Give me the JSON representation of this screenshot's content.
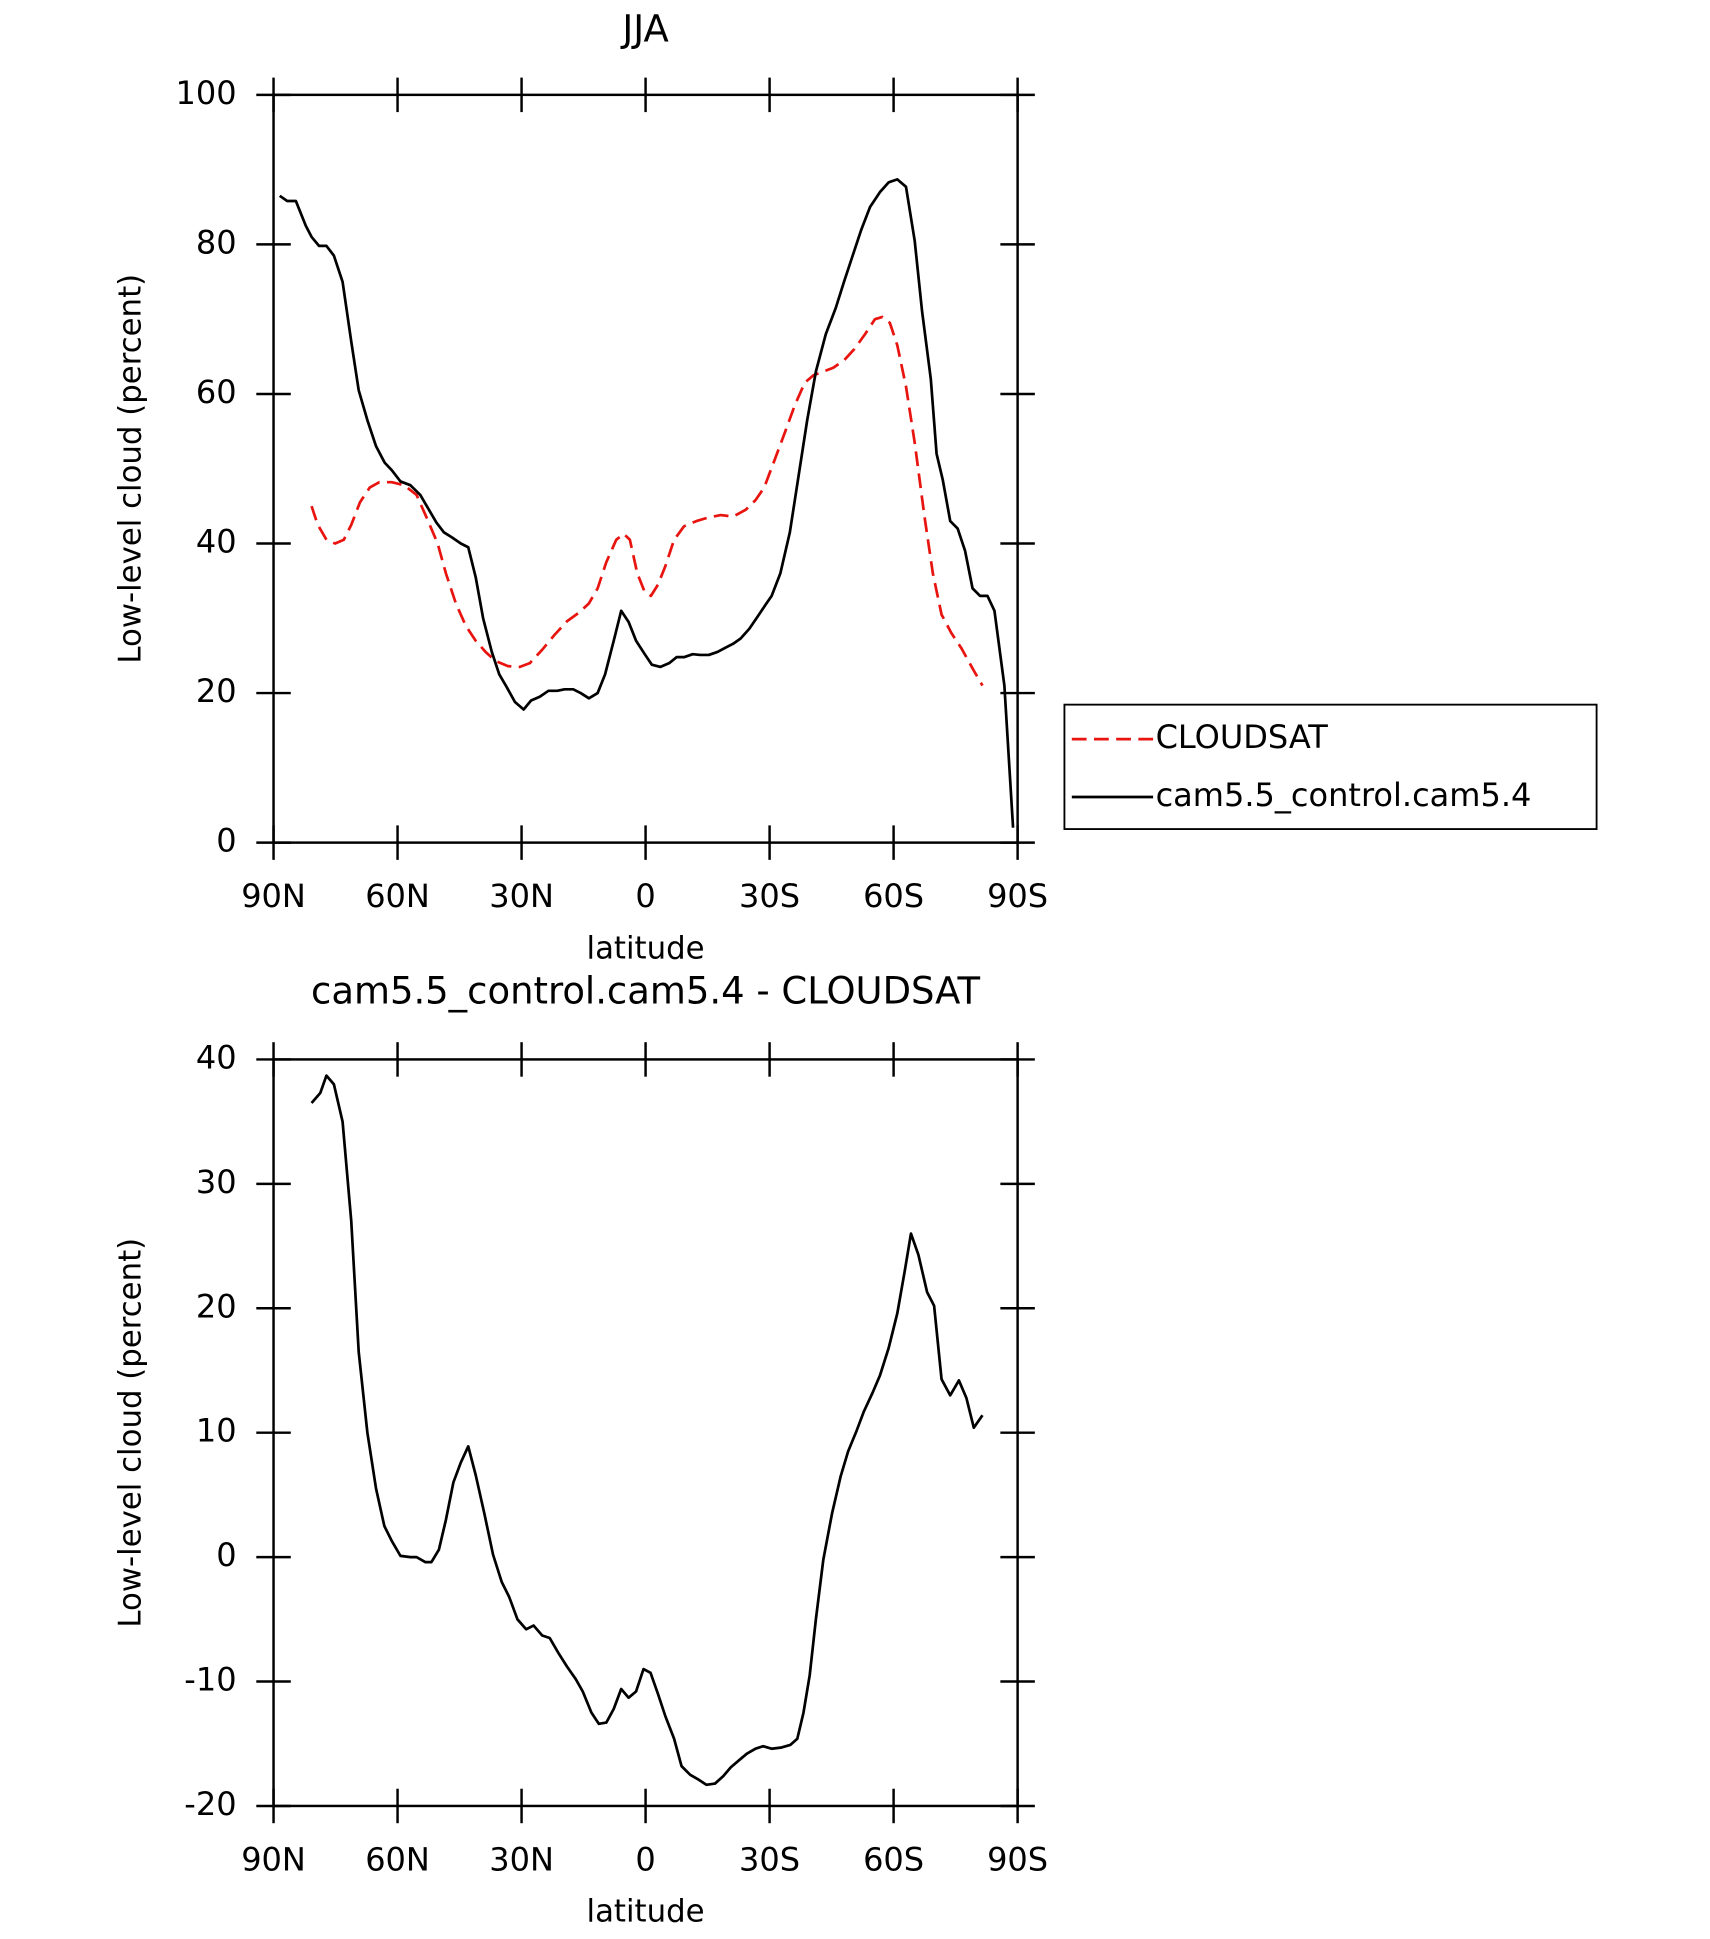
{
  "chart_data": [
    {
      "type": "line",
      "title": "JJA",
      "xlabel": "latitude",
      "ylabel": "Low-level cloud (percent)",
      "xlim": [
        90,
        -90
      ],
      "xticks": [
        {
          "value": 90,
          "label": "90N"
        },
        {
          "value": 60,
          "label": "60N"
        },
        {
          "value": 30,
          "label": "30N"
        },
        0,
        {
          "value": -30,
          "label": "30S"
        },
        {
          "value": -60,
          "label": "60S"
        },
        {
          "value": -90,
          "label": "90S"
        }
      ],
      "ylim": [
        0,
        100
      ],
      "yticks": [
        0,
        20,
        40,
        60,
        80,
        100
      ],
      "legend": "right",
      "series": [
        {
          "name": "CLOUDSAT",
          "color": "#e8140f",
          "dashed": true,
          "x": [
            80.8,
            79.3,
            77.2,
            75.1,
            73.0,
            71.2,
            69.1,
            66.7,
            64.4,
            61.4,
            58.4,
            55.4,
            53.0,
            50.3,
            48.3,
            45.9,
            43.5,
            41.1,
            38.7,
            36.3,
            33.3,
            30.4,
            28.0,
            25.0,
            22.0,
            19.0,
            16.0,
            13.7,
            11.6,
            9.5,
            7.1,
            5.3,
            3.8,
            2.0,
            0.2,
            -1.3,
            -3.0,
            -4.8,
            -6.9,
            -9.3,
            -12.3,
            -15.3,
            -18.2,
            -21.2,
            -24.2,
            -26.6,
            -28.7,
            -31.1,
            -33.8,
            -36.1,
            -38.5,
            -40.6,
            -43.0,
            -45.4,
            -48.0,
            -50.5,
            -53.1,
            -55.5,
            -57.3,
            -59.1,
            -60.9,
            -63.0,
            -65.1,
            -67.5,
            -69.5,
            -71.6,
            -74.0,
            -76.4,
            -79.4,
            -81.5
          ],
          "values": [
            45,
            42.5,
            40.5,
            40,
            40.5,
            42.5,
            45.5,
            47.5,
            48.2,
            48.2,
            47.8,
            46.5,
            43.5,
            40,
            36,
            32,
            29,
            27,
            25.5,
            24.3,
            23.6,
            23.5,
            24,
            25.8,
            27.8,
            29.6,
            30.8,
            32,
            34,
            37.5,
            40.5,
            41.3,
            40.5,
            36,
            33.5,
            33,
            34.5,
            37,
            40.5,
            42.3,
            43,
            43.5,
            43.8,
            43.6,
            44.5,
            45.8,
            47.5,
            51,
            55,
            58.5,
            61.5,
            62.5,
            63,
            63.5,
            64.5,
            66,
            68,
            70,
            70.3,
            69.5,
            66.5,
            61,
            53.5,
            43.5,
            36,
            30.5,
            28,
            26,
            23,
            21
          ]
        },
        {
          "name": "cam5.5_control.cam5.4",
          "color": "#000000",
          "dashed": false,
          "x": [
            88.5,
            86.7,
            84.6,
            82.2,
            80.8,
            79.0,
            77.2,
            75.4,
            73.3,
            71.2,
            69.4,
            67.3,
            65.2,
            63.1,
            61.4,
            59.3,
            56.9,
            54.5,
            52.4,
            50.6,
            48.8,
            46.8,
            44.7,
            42.9,
            41.1,
            39.3,
            37.2,
            35.4,
            33.6,
            31.6,
            29.5,
            27.7,
            25.6,
            23.5,
            21.4,
            19.6,
            17.5,
            15.7,
            13.7,
            11.6,
            9.8,
            7.7,
            5.9,
            4.1,
            2.3,
            0.2,
            -1.5,
            -3.6,
            -5.7,
            -7.5,
            -9.3,
            -11.4,
            -13.2,
            -15.3,
            -17.4,
            -19.1,
            -21.2,
            -23.0,
            -25.1,
            -27.2,
            -29.0,
            -30.5,
            -32.6,
            -34.9,
            -37.0,
            -39.1,
            -41.2,
            -43.6,
            -46.0,
            -48.0,
            -50.1,
            -52.2,
            -54.3,
            -56.7,
            -58.8,
            -60.9,
            -63.0,
            -65.1,
            -66.9,
            -69.0,
            -70.4,
            -71.9,
            -73.7,
            -75.5,
            -77.3,
            -79.1,
            -80.9,
            -82.7,
            -84.4,
            -86.8,
            -88.9
          ],
          "values": [
            86.5,
            85.8,
            85.8,
            82.5,
            81,
            79.8,
            79.8,
            78.5,
            75,
            67,
            60.5,
            56.5,
            53,
            50.8,
            49.8,
            48.3,
            47.8,
            46.5,
            44.5,
            42.8,
            41.5,
            40.8,
            40,
            39.5,
            35.5,
            30,
            25.5,
            22.5,
            20.8,
            18.8,
            17.8,
            19,
            19.5,
            20.3,
            20.3,
            20.5,
            20.5,
            20,
            19.3,
            20,
            22.5,
            27,
            31,
            29.5,
            27,
            25.2,
            23.8,
            23.5,
            24,
            24.8,
            24.8,
            25.2,
            25.1,
            25.1,
            25.5,
            26,
            26.6,
            27.3,
            28.6,
            30.3,
            31.8,
            33,
            36,
            41.5,
            49,
            56.5,
            63,
            68,
            71.5,
            75,
            78.5,
            82,
            85,
            87,
            88.3,
            88.7,
            87.7,
            80.5,
            71,
            62,
            52,
            48.5,
            43,
            42,
            39,
            34,
            33,
            33,
            31,
            21,
            2
          ]
        }
      ]
    },
    {
      "type": "line",
      "title": "cam5.5_control.cam5.4 - CLOUDSAT",
      "xlabel": "latitude",
      "ylabel": "Low-level cloud (percent)",
      "xlim": [
        90,
        -90
      ],
      "xticks": [
        {
          "value": 90,
          "label": "90N"
        },
        {
          "value": 60,
          "label": "60N"
        },
        {
          "value": 30,
          "label": "30N"
        },
        0,
        {
          "value": -30,
          "label": "30S"
        },
        {
          "value": -60,
          "label": "60S"
        },
        {
          "value": -90,
          "label": "90S"
        }
      ],
      "ylim": [
        -20,
        40
      ],
      "yticks": [
        -20,
        -10,
        0,
        10,
        20,
        30,
        40
      ],
      "color": "#000000",
      "x": [
        80.8,
        78.7,
        77.2,
        75.4,
        73.3,
        71.2,
        69.4,
        67.3,
        65.2,
        63.2,
        61.4,
        59.3,
        56.9,
        55.4,
        53.3,
        51.8,
        50.0,
        48.3,
        46.5,
        44.7,
        42.9,
        41.1,
        39.0,
        36.9,
        34.8,
        33.0,
        31.0,
        28.9,
        27.1,
        25.0,
        23.2,
        21.1,
        19.0,
        16.9,
        15.2,
        13.1,
        11.3,
        9.5,
        7.7,
        5.9,
        4.1,
        2.3,
        0.5,
        -1.2,
        -3.0,
        -4.8,
        -6.9,
        -8.7,
        -10.8,
        -12.9,
        -14.7,
        -16.8,
        -18.8,
        -20.6,
        -22.7,
        -24.5,
        -26.6,
        -28.4,
        -30.5,
        -32.9,
        -35.0,
        -36.7,
        -38.2,
        -39.7,
        -41.2,
        -43.0,
        -45.1,
        -47.2,
        -49.0,
        -51.1,
        -52.8,
        -54.9,
        -56.7,
        -58.8,
        -60.9,
        -62.7,
        -64.2,
        -66.0,
        -68.1,
        -69.8,
        -71.6,
        -73.7,
        -75.8,
        -77.6,
        -79.4,
        -81.5
      ],
      "values": [
        36.5,
        37.3,
        38.7,
        38,
        35,
        27,
        16.5,
        10,
        5.5,
        2.5,
        1.3,
        0.1,
        0,
        0,
        -0.4,
        -0.4,
        0.6,
        3,
        6,
        7.6,
        8.9,
        6.6,
        3.5,
        0.2,
        -2,
        -3.2,
        -5,
        -5.8,
        -5.5,
        -6.3,
        -6.5,
        -7.7,
        -8.8,
        -9.8,
        -10.8,
        -12.5,
        -13.4,
        -13.3,
        -12.2,
        -10.6,
        -11.3,
        -10.8,
        -9,
        -9.3,
        -11,
        -12.8,
        -14.6,
        -16.8,
        -17.5,
        -17.9,
        -18.3,
        -18.2,
        -17.6,
        -16.9,
        -16.3,
        -15.8,
        -15.4,
        -15.2,
        -15.4,
        -15.3,
        -15.1,
        -14.6,
        -12.5,
        -9.5,
        -5,
        -0.2,
        3.5,
        6.5,
        8.5,
        10.2,
        11.7,
        13.2,
        14.6,
        16.8,
        19.6,
        23,
        26,
        24.3,
        21.3,
        20.2,
        14.3,
        13,
        14.2,
        12.8,
        10.4,
        11.4
      ]
    }
  ]
}
